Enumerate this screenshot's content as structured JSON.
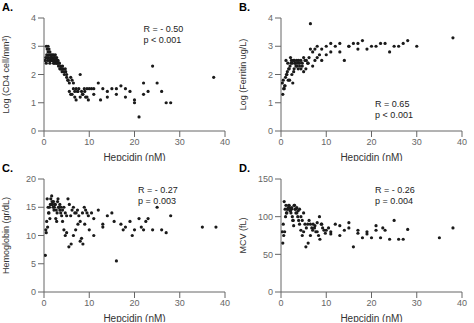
{
  "chart_data": [
    {
      "type": "scatter",
      "title": "A.",
      "x_label": "Hepcidin (nM)",
      "y_label": "Log (CD4 cell/mm³)",
      "annotation": "R = - 0.50\np < 0.001",
      "color": "#1a1a1a",
      "grid": false,
      "xlim": [
        0,
        40
      ],
      "xticks": [
        0,
        10,
        20,
        30,
        40
      ],
      "ylim": [
        0,
        4
      ],
      "yticks": [
        0,
        1,
        2,
        3,
        4
      ],
      "x": [
        0.3,
        0.4,
        0.5,
        0.6,
        0.7,
        0.8,
        0.9,
        1.0,
        1.1,
        1.2,
        1.3,
        1.4,
        1.5,
        1.6,
        1.7,
        1.8,
        1.9,
        2.0,
        2.1,
        2.2,
        2.3,
        2.4,
        2.5,
        2.6,
        2.7,
        2.8,
        2.9,
        3.0,
        3.2,
        3.4,
        3.6,
        3.8,
        4.0,
        4.2,
        4.5,
        4.8,
        5.0,
        5.3,
        5.6,
        5.9,
        6.2,
        6.5,
        6.8,
        7.1,
        7.4,
        7.7,
        8.0,
        8.3,
        8.6,
        8.9,
        9.2,
        9.5,
        9.8,
        10.5,
        11.0,
        12.0,
        13.0,
        14.0,
        15.0,
        16.0,
        17.0,
        18.0,
        19.0,
        20.0,
        21.0,
        22.0,
        23.0,
        24.0,
        25.0,
        26.0,
        27.0,
        28.0,
        37.5,
        0.5,
        0.7,
        0.9,
        1.1,
        1.3,
        1.5,
        1.7,
        1.9,
        2.1,
        2.3,
        2.5,
        2.7,
        2.9,
        3.1,
        3.3,
        3.5,
        3.7,
        3.9,
        4.1,
        4.4,
        4.7,
        5.0,
        5.3,
        5.6,
        5.9,
        6.2,
        6.5,
        6.8,
        7.1,
        7.5,
        8.0,
        8.5,
        9.0,
        9.5,
        10.0,
        11.0,
        12.5,
        14.0,
        16.0,
        18.0,
        20.0,
        22.0
      ],
      "values": [
        2.5,
        2.6,
        2.4,
        2.7,
        2.6,
        2.5,
        2.8,
        2.6,
        2.7,
        2.5,
        2.4,
        2.6,
        2.5,
        2.6,
        2.5,
        2.7,
        2.5,
        2.6,
        2.4,
        2.5,
        2.4,
        2.6,
        2.5,
        2.4,
        2.5,
        2.6,
        2.4,
        2.5,
        2.3,
        2.4,
        2.2,
        2.2,
        2.1,
        2.2,
        2.0,
        2.1,
        1.9,
        1.8,
        1.7,
        1.9,
        1.8,
        1.7,
        1.4,
        1.5,
        1.4,
        1.5,
        2.0,
        1.4,
        1.3,
        1.5,
        1.2,
        1.5,
        1.1,
        1.5,
        1.5,
        1.7,
        1.5,
        1.4,
        1.5,
        1.5,
        1.6,
        1.5,
        1.4,
        1.0,
        0.5,
        1.7,
        1.4,
        2.3,
        1.7,
        1.4,
        1.0,
        1.0,
        1.9,
        3.0,
        2.9,
        3.0,
        2.9,
        2.8,
        2.7,
        2.6,
        2.5,
        2.7,
        2.6,
        2.7,
        2.5,
        2.4,
        2.5,
        2.4,
        2.2,
        2.3,
        2.2,
        2.3,
        2.1,
        2.2,
        2.0,
        1.8,
        1.4,
        1.3,
        1.3,
        1.5,
        1.2,
        1.1,
        1.4,
        1.2,
        1.3,
        1.4,
        1.2,
        1.5,
        1.3,
        1.1,
        1.2,
        1.3,
        1.2,
        1.1,
        1.3
      ]
    },
    {
      "type": "scatter",
      "title": "B.",
      "x_label": "Hepcidin (nM)",
      "y_label": "Log (Ferritin ug/L)",
      "annotation": "R = 0.65\np < 0.001",
      "color": "#1a1a1a",
      "grid": false,
      "xlim": [
        0,
        40
      ],
      "xticks": [
        0,
        10,
        20,
        30,
        40
      ],
      "ylim": [
        0,
        4
      ],
      "yticks": [
        0,
        1,
        2,
        3,
        4
      ],
      "x": [
        0.3,
        0.5,
        0.7,
        0.9,
        1.1,
        1.3,
        1.5,
        1.7,
        1.9,
        2.1,
        2.3,
        2.5,
        2.7,
        2.9,
        3.1,
        3.3,
        3.5,
        3.7,
        3.9,
        4.1,
        4.4,
        4.7,
        5.0,
        5.3,
        5.6,
        5.9,
        6.2,
        6.5,
        7.0,
        7.5,
        8.0,
        9.0,
        10.0,
        11.0,
        12.0,
        13.0,
        14.0,
        15.0,
        16.0,
        17.0,
        18.0,
        20.0,
        22.0,
        24.0,
        26.0,
        28.0,
        30.0,
        38.0,
        0.4,
        0.6,
        0.8,
        1.0,
        1.2,
        1.4,
        1.6,
        1.8,
        2.0,
        2.2,
        2.4,
        2.6,
        2.8,
        3.0,
        3.2,
        3.5,
        3.8,
        4.1,
        4.4,
        4.7,
        5.0,
        5.5,
        6.0,
        6.5,
        7.0,
        7.5,
        8.0,
        8.5,
        9.0,
        10.0,
        11.0,
        13.0,
        15.0,
        17.0,
        19.0,
        21.0,
        23.0,
        25.0,
        27.0
      ],
      "values": [
        1.7,
        1.8,
        1.5,
        1.6,
        2.5,
        2.0,
        2.4,
        2.2,
        1.8,
        2.6,
        2.5,
        2.4,
        2.5,
        2.2,
        2.4,
        2.3,
        2.5,
        2.4,
        2.5,
        2.4,
        2.5,
        2.3,
        2.6,
        2.5,
        2.5,
        2.4,
        2.6,
        3.8,
        2.3,
        2.5,
        2.6,
        2.5,
        2.7,
        2.8,
        3.0,
        3.1,
        2.5,
        3.0,
        3.1,
        2.9,
        3.2,
        3.0,
        3.1,
        2.8,
        3.0,
        3.2,
        3.0,
        3.3,
        1.3,
        1.5,
        1.6,
        1.9,
        2.0,
        2.1,
        1.8,
        2.2,
        2.3,
        2.4,
        2.0,
        1.7,
        2.1,
        2.5,
        2.4,
        2.3,
        2.2,
        2.3,
        2.2,
        2.4,
        2.1,
        2.2,
        2.4,
        2.9,
        2.8,
        2.9,
        3.0,
        2.7,
        2.9,
        3.0,
        3.1,
        2.8,
        3.0,
        3.1,
        2.9,
        3.0,
        3.1,
        3.0,
        3.1
      ]
    },
    {
      "type": "scatter",
      "title": "C.",
      "x_label": "Hepcidin (nM)",
      "y_label": "Hemoglobin (gr/dL)",
      "annotation": "R = - 0.27\np = 0.003",
      "color": "#1a1a1a",
      "grid": false,
      "xlim": [
        0,
        40
      ],
      "xticks": [
        0,
        10,
        20,
        30,
        40
      ],
      "ylim": [
        0,
        20
      ],
      "yticks": [
        0,
        5,
        10,
        15,
        20
      ],
      "x": [
        0.3,
        0.5,
        0.7,
        0.9,
        1.1,
        1.3,
        1.5,
        1.7,
        1.9,
        2.1,
        2.3,
        2.5,
        2.7,
        2.9,
        3.1,
        3.3,
        3.5,
        3.7,
        3.9,
        4.1,
        4.4,
        4.7,
        5.0,
        5.3,
        5.6,
        5.9,
        6.2,
        6.5,
        6.8,
        7.1,
        7.4,
        7.7,
        8.0,
        8.3,
        8.6,
        8.9,
        9.2,
        9.5,
        9.8,
        10.5,
        11.0,
        12.0,
        13.0,
        14.0,
        15.0,
        16.0,
        17.0,
        18.0,
        19.0,
        20.0,
        21.0,
        22.0,
        23.0,
        24.0,
        25.0,
        26.0,
        27.0,
        28.0,
        35.0,
        38.0,
        0.4,
        0.6,
        0.8,
        1.0,
        1.2,
        1.4,
        1.6,
        1.8,
        2.0,
        2.2,
        2.4,
        2.6,
        2.8,
        3.0,
        3.2,
        3.5,
        3.8,
        4.1,
        4.4,
        4.7,
        5.0,
        5.5,
        6.0,
        6.5,
        7.0,
        7.5,
        8.0,
        8.5,
        9.0,
        10.0,
        11.0,
        13.0,
        15.5,
        17.5,
        19.5,
        21.5,
        22.5
      ],
      "values": [
        6.5,
        10.5,
        16.5,
        15.0,
        14.0,
        13.0,
        16.5,
        17.0,
        15.5,
        16.0,
        15.0,
        15.5,
        14.5,
        14.0,
        16.5,
        15.0,
        15.5,
        14.0,
        13.5,
        14.5,
        15.0,
        14.0,
        13.5,
        16.5,
        15.5,
        13.5,
        14.5,
        15.0,
        14.0,
        14.0,
        14.5,
        13.5,
        9.0,
        9.5,
        8.5,
        15.0,
        14.5,
        14.0,
        13.5,
        14.0,
        13.0,
        14.5,
        12.0,
        13.5,
        14.0,
        5.5,
        12.0,
        11.5,
        12.5,
        11.0,
        13.0,
        11.0,
        13.0,
        11.0,
        15.0,
        11.0,
        10.5,
        13.5,
        11.5,
        11.5,
        11.0,
        12.5,
        11.5,
        14.0,
        15.0,
        15.5,
        15.5,
        16.0,
        15.0,
        14.5,
        15.5,
        13.0,
        12.5,
        16.0,
        15.0,
        14.5,
        15.0,
        12.5,
        11.0,
        10.0,
        10.5,
        8.0,
        8.5,
        10.0,
        11.0,
        12.0,
        12.5,
        14.0,
        12.0,
        11.0,
        10.0,
        11.5,
        12.5,
        11.0,
        10.0,
        11.5,
        12.5
      ]
    },
    {
      "type": "scatter",
      "title": "D.",
      "x_label": "Hepcidin (nM)",
      "y_label": "MCV (fL)",
      "annotation": "R = - 0.26\np = 0.004",
      "color": "#1a1a1a",
      "grid": false,
      "xlim": [
        0,
        40
      ],
      "xticks": [
        0,
        10,
        20,
        30,
        40
      ],
      "ylim": [
        0,
        150
      ],
      "yticks": [
        0,
        50,
        100,
        150
      ],
      "x": [
        0.3,
        0.5,
        0.7,
        0.9,
        1.1,
        1.3,
        1.5,
        1.7,
        1.9,
        2.1,
        2.3,
        2.5,
        2.7,
        2.9,
        3.1,
        3.3,
        3.5,
        3.7,
        3.9,
        4.1,
        4.4,
        4.7,
        5.0,
        5.3,
        5.6,
        5.9,
        6.2,
        6.5,
        6.8,
        7.1,
        7.4,
        7.7,
        8.0,
        8.3,
        8.6,
        8.9,
        9.2,
        9.5,
        9.8,
        10.5,
        11.0,
        12.0,
        13.0,
        14.0,
        15.0,
        16.0,
        17.0,
        18.0,
        19.0,
        20.0,
        21.0,
        22.0,
        23.0,
        24.0,
        25.0,
        26.0,
        27.0,
        28.0,
        35.0,
        38.0,
        0.4,
        0.6,
        0.8,
        1.0,
        1.2,
        1.4,
        1.6,
        1.8,
        2.0,
        2.2,
        2.4,
        2.6,
        2.8,
        3.0,
        3.2,
        3.5,
        3.8,
        4.1,
        4.4,
        4.7,
        5.0,
        5.5,
        6.0,
        6.5,
        7.0,
        7.5,
        8.0,
        8.5,
        9.0,
        10.0,
        11.0,
        13.0,
        15.0,
        17.0,
        19.0,
        21.0,
        22.5
      ],
      "values": [
        80,
        90,
        120,
        110,
        115,
        105,
        110,
        115,
        112,
        108,
        110,
        100,
        95,
        115,
        110,
        105,
        112,
        100,
        95,
        110,
        100,
        95,
        105,
        90,
        85,
        90,
        95,
        90,
        85,
        90,
        85,
        80,
        80,
        75,
        70,
        90,
        85,
        82,
        78,
        85,
        80,
        90,
        75,
        82,
        85,
        60,
        78,
        72,
        80,
        72,
        82,
        72,
        82,
        70,
        95,
        70,
        70,
        83,
        72,
        85,
        65,
        75,
        80,
        100,
        105,
        110,
        112,
        115,
        108,
        105,
        112,
        95,
        88,
        115,
        110,
        105,
        108,
        90,
        82,
        75,
        80,
        60,
        65,
        75,
        82,
        88,
        92,
        100,
        90,
        82,
        77,
        88,
        92,
        82,
        77,
        88,
        85
      ]
    }
  ]
}
